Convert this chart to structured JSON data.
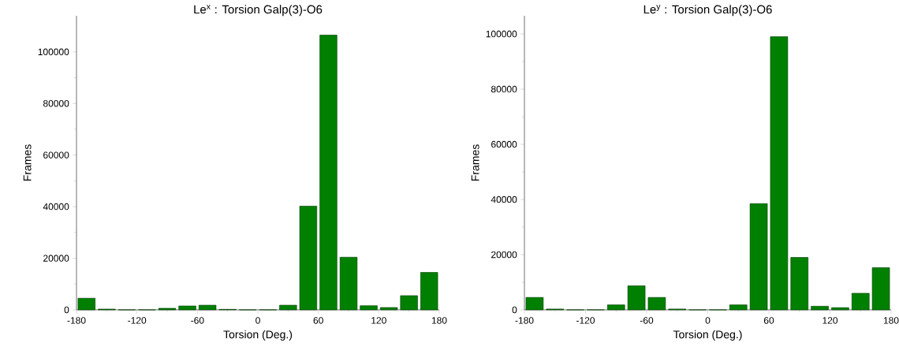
{
  "chart_data": [
    {
      "type": "histogram",
      "title": "Le$^{x}$ : Torsion Galp(3)-O6",
      "xlabel": "Torsion (Deg.)",
      "ylabel": "Frames",
      "bins": [
        -180,
        -160,
        -140,
        -120,
        -100,
        -80,
        -60,
        -40,
        -20,
        0,
        20,
        40,
        60,
        80,
        100,
        120,
        140,
        160,
        180
      ],
      "values": [
        4500,
        300,
        0,
        0,
        600,
        1500,
        1800,
        200,
        0,
        0,
        1800,
        40200,
        106500,
        20400,
        1600,
        900,
        5500,
        14500
      ],
      "color": "#008000",
      "xlim": [
        -180,
        180
      ],
      "xticks": [
        -180,
        -120,
        -60,
        0,
        60,
        120,
        180
      ],
      "ylim": [
        0,
        114000
      ],
      "yticks": [
        0,
        20000,
        40000,
        60000,
        80000,
        100000
      ]
    },
    {
      "type": "histogram",
      "title": "Le$^{y}$ : Torsion Galp(3)-O6",
      "xlabel": "Torsion (Deg.)",
      "ylabel": "Frames",
      "bins": [
        -180,
        -160,
        -140,
        -120,
        -100,
        -80,
        -60,
        -40,
        -20,
        0,
        20,
        40,
        60,
        80,
        100,
        120,
        140,
        160,
        180
      ],
      "values": [
        4500,
        300,
        0,
        0,
        1800,
        8700,
        4500,
        300,
        0,
        0,
        1800,
        38500,
        99000,
        19000,
        1300,
        800,
        6000,
        15300
      ],
      "color": "#008000",
      "xlim": [
        -180,
        180
      ],
      "xticks": [
        -180,
        -120,
        -60,
        0,
        60,
        120,
        180
      ],
      "ylim": [
        0,
        106600
      ],
      "yticks": [
        0,
        20000,
        40000,
        60000,
        80000,
        100000
      ]
    }
  ]
}
